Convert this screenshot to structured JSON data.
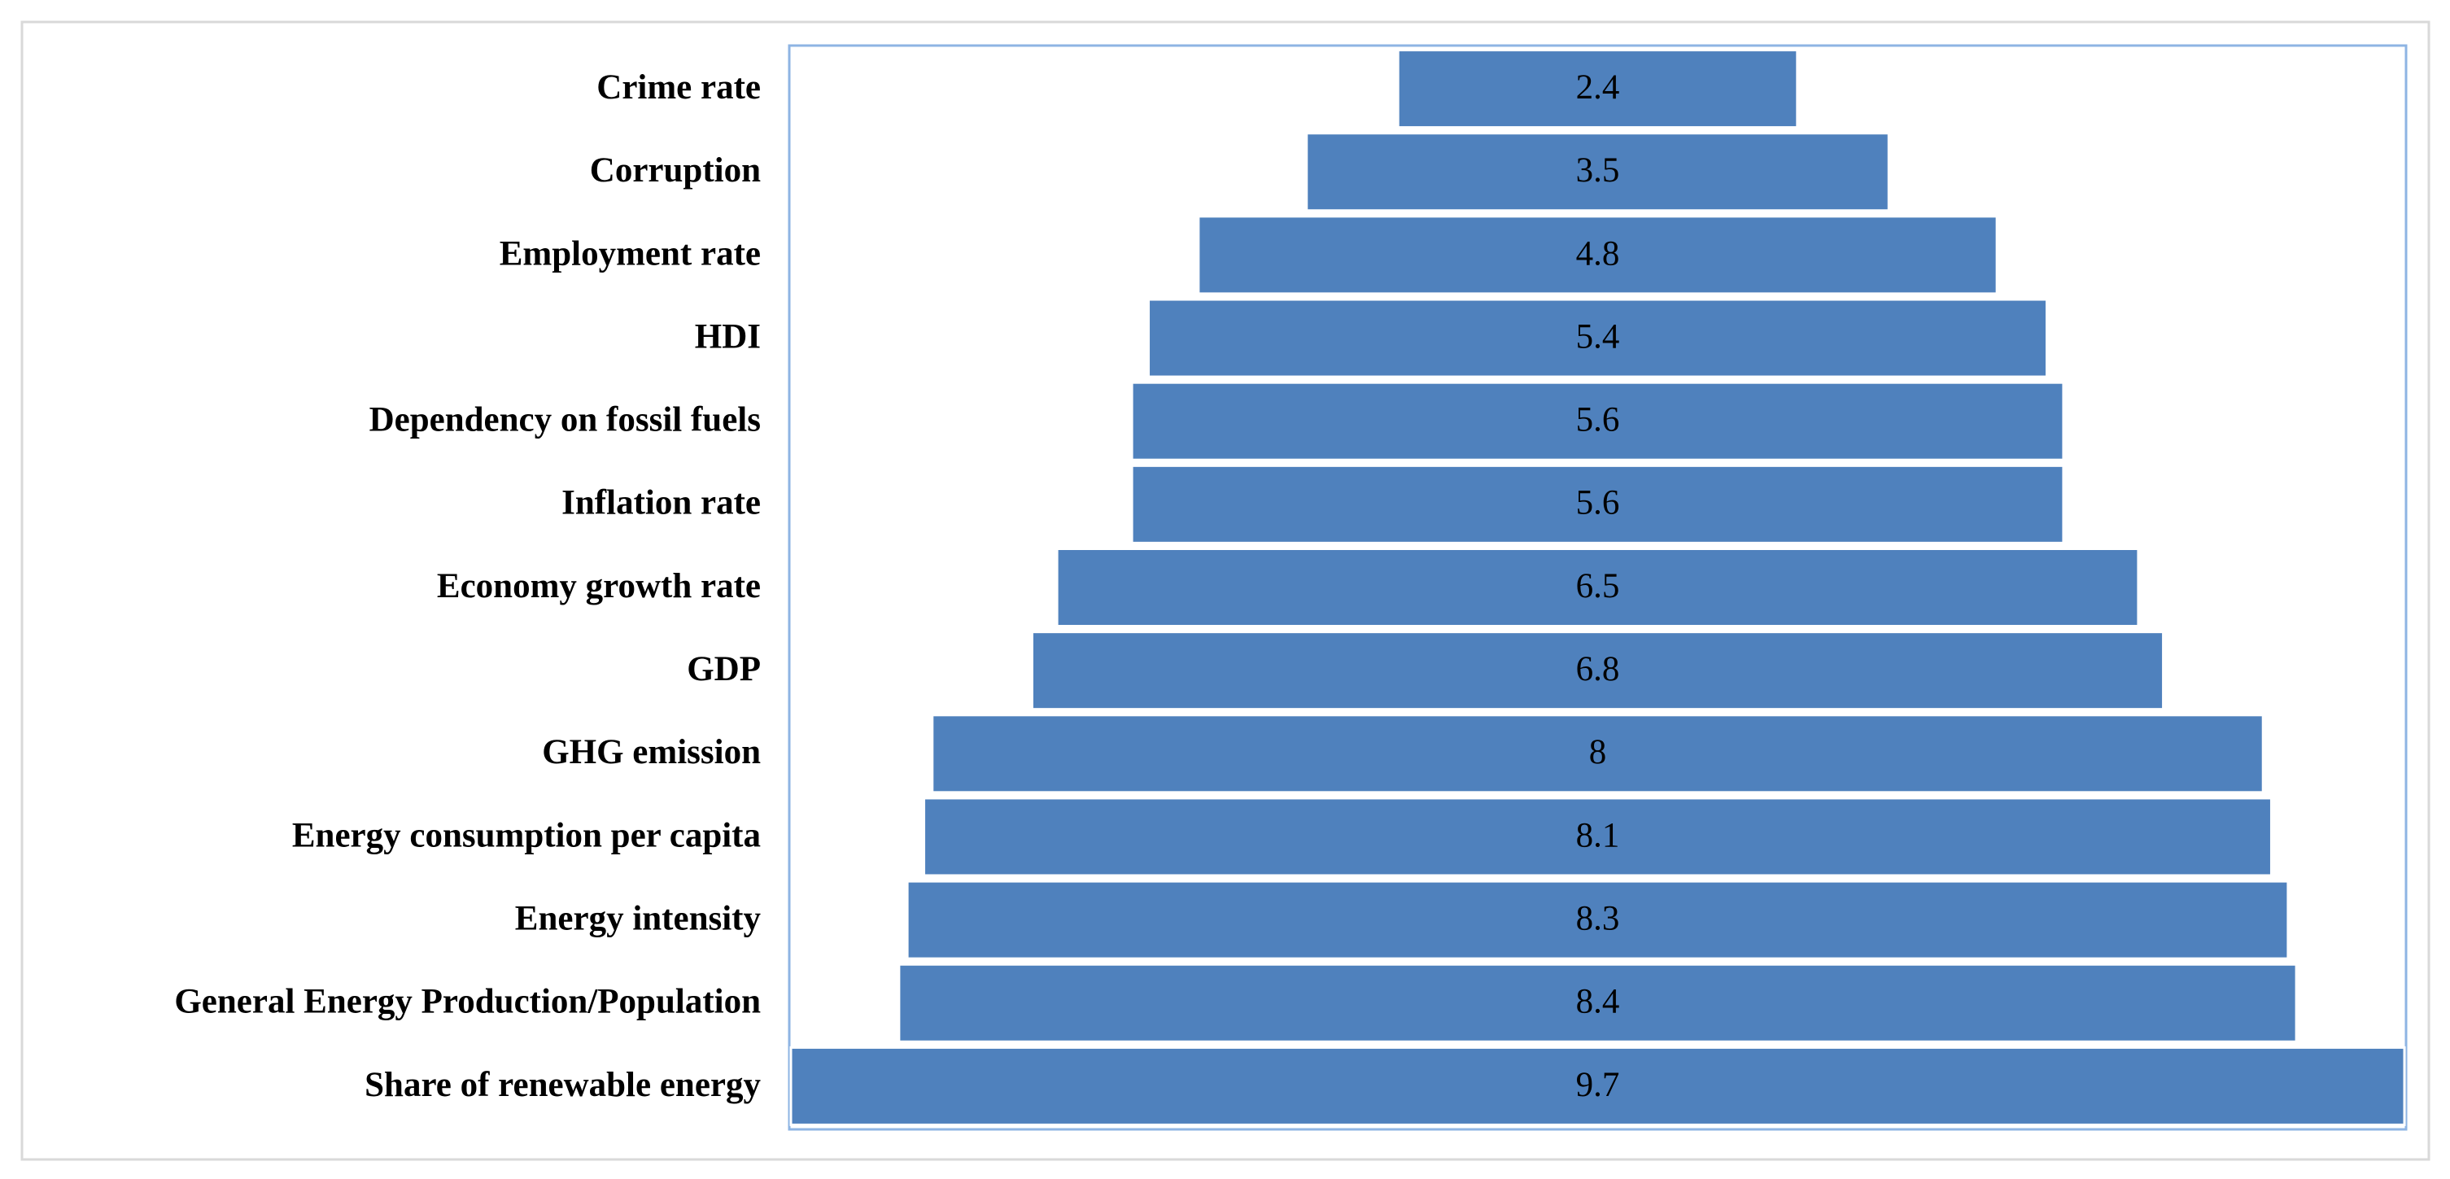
{
  "chart_data": {
    "type": "funnel",
    "categories": [
      "Crime rate",
      "Corruption",
      "Employment rate",
      "HDI",
      "Dependency on fossil fuels",
      "Inflation rate",
      "Economy growth rate",
      "GDP",
      "GHG emission",
      "Energy consumption per capita",
      "Energy intensity",
      "General Energy Production/Population",
      "Share of renewable energy"
    ],
    "values": [
      2.4,
      3.5,
      4.8,
      5.4,
      5.6,
      5.6,
      6.5,
      6.8,
      8,
      8.1,
      8.3,
      8.4,
      9.7
    ],
    "color": "#4f81bd"
  }
}
